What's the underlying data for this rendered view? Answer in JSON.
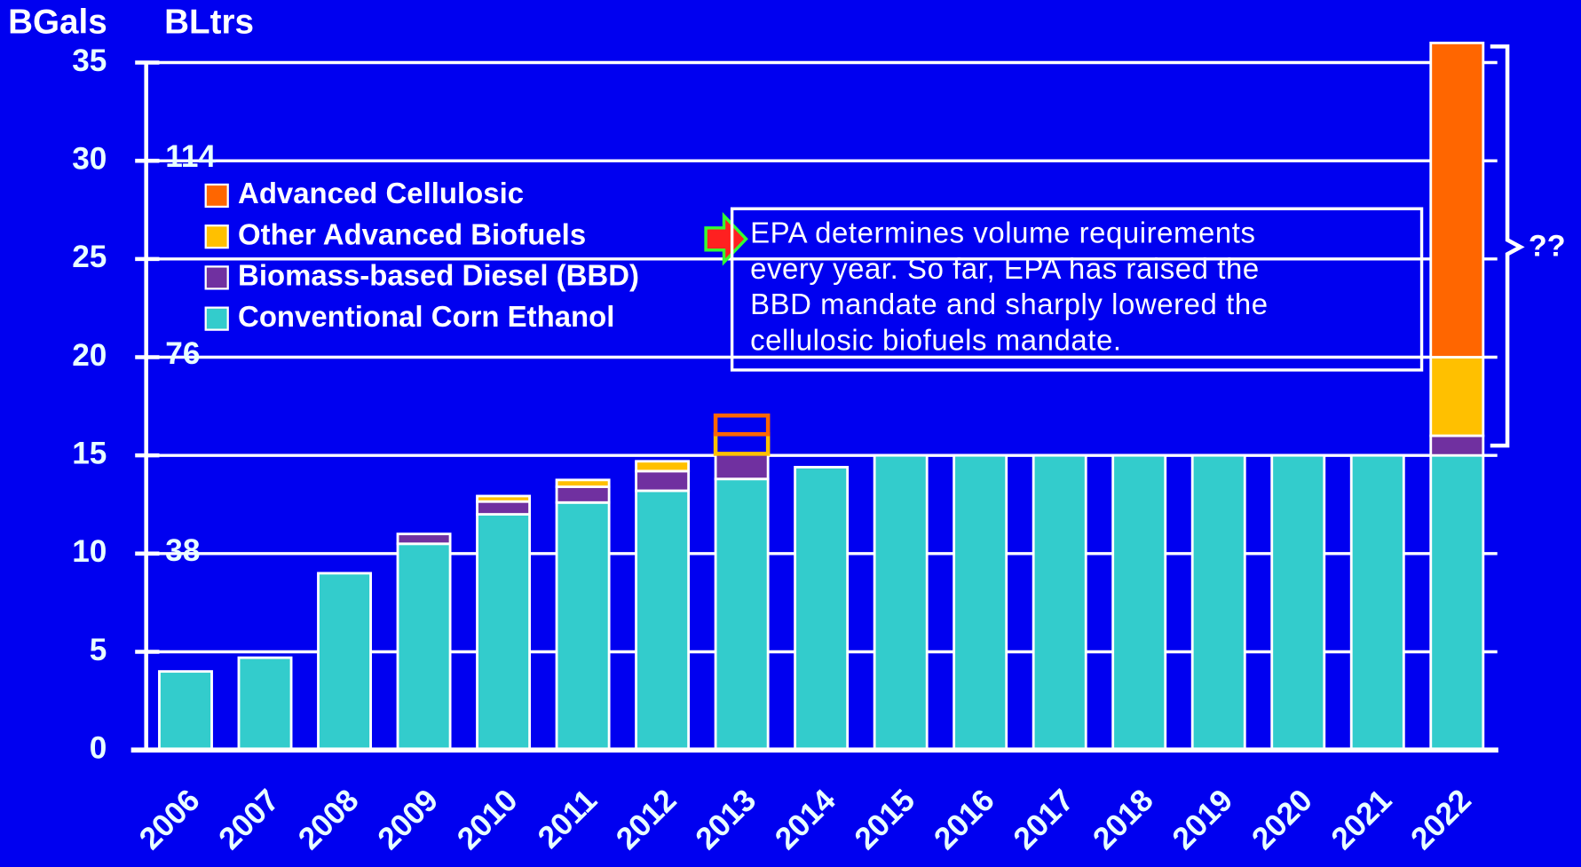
{
  "chart_data": {
    "type": "stacked_bar",
    "axis_labels": {
      "y": "BGals",
      "y2": "BLtrs"
    },
    "categories": [
      "2006",
      "2007",
      "2008",
      "2009",
      "2010",
      "2011",
      "2012",
      "2013",
      "2014",
      "2015",
      "2016",
      "2017",
      "2018",
      "2019",
      "2020",
      "2021",
      "2022"
    ],
    "series": [
      {
        "name": "Conventional Corn Ethanol",
        "color": "#33cccc",
        "values": [
          4.0,
          4.7,
          9.0,
          10.5,
          12.0,
          12.6,
          13.2,
          13.8,
          14.4,
          15,
          15,
          15,
          15,
          15,
          15,
          15,
          15
        ]
      },
      {
        "name": "Biomass-based Diesel (BBD)",
        "color": "#7030a0",
        "values": [
          null,
          null,
          null,
          0.5,
          0.65,
          0.8,
          1.0,
          1.28,
          null,
          null,
          null,
          null,
          null,
          null,
          null,
          null,
          1.0
        ]
      },
      {
        "name": "Other Advanced Biofuels",
        "color": "#ffc000",
        "values": [
          null,
          null,
          null,
          null,
          0.28,
          0.35,
          0.5,
          1.0,
          null,
          null,
          null,
          null,
          null,
          null,
          null,
          null,
          4.0
        ],
        "outline_categories": [
          "2013"
        ]
      },
      {
        "name": "Advanced Cellulosic",
        "color": "#ff6600",
        "values": [
          null,
          null,
          null,
          null,
          null,
          null,
          null,
          0.95,
          null,
          null,
          null,
          null,
          null,
          null,
          null,
          null,
          16.0
        ],
        "outline_categories": [
          "2013"
        ]
      }
    ],
    "ylim": [
      0,
      35
    ],
    "yticks": [
      0,
      5,
      10,
      15,
      20,
      25,
      30,
      35
    ],
    "y2lim": [
      0,
      132.475
    ],
    "y2ticks": [
      38,
      76,
      114
    ],
    "grid": true,
    "legend": "upper left",
    "annotation": [
      "EPA determines volume requirements",
      "every year.  So far, EPA has raised the",
      "BBD mandate and sharply lowered the",
      "cellulosic biofuels mandate."
    ],
    "bracket_label": "??"
  }
}
